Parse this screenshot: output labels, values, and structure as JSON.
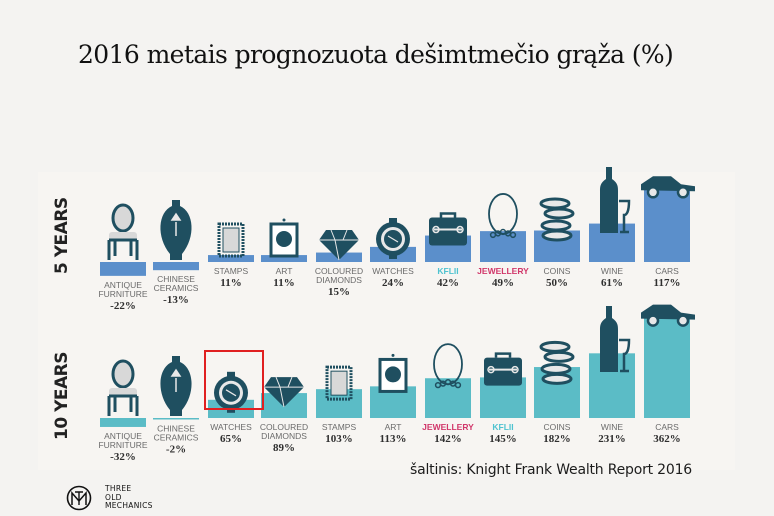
{
  "title": "2016 metais prognozuota dešimtmečio grąža (%)",
  "source": "šaltinis: Knight Frank Wealth Report 2016",
  "logo": {
    "lines": [
      "THREE",
      "OLD",
      "MECHANICS"
    ]
  },
  "colors": {
    "five_year": "#5b8fcb",
    "ten_year": "#5bbcc6",
    "icon": "#1f4f60",
    "kflii": "#4fc3d0",
    "jewellery": "#d1376a",
    "highlight": "#e02020"
  },
  "chart_data": [
    {
      "type": "bar",
      "title": "5 YEARS",
      "unit": "%",
      "categories": [
        "ANTIQUE FURNITURE",
        "CHINESE CERAMICS",
        "STAMPS",
        "ART",
        "COLOURED DIAMONDS",
        "WATCHES",
        "KFLII",
        "JEWELLERY",
        "COINS",
        "WINE",
        "CARS"
      ],
      "label_lines": [
        [
          "ANTIQUE",
          "FURNITURE"
        ],
        [
          "CHINESE",
          "CERAMICS"
        ],
        [
          "STAMPS"
        ],
        [
          "ART"
        ],
        [
          "COLOURED",
          "DIAMONDS"
        ],
        [
          "WATCHES"
        ],
        [
          "KFLII"
        ],
        [
          "JEWELLERY"
        ],
        [
          "COINS"
        ],
        [
          "WINE"
        ],
        [
          "CARS"
        ]
      ],
      "icons": [
        "chair-icon",
        "vase-icon",
        "stamp-icon",
        "portrait-icon",
        "diamond-icon",
        "watch-icon",
        "briefcase-icon",
        "necklace-icon",
        "coins-icon",
        "wine-icon",
        "car-icon"
      ],
      "values": [
        -22,
        -13,
        11,
        11,
        15,
        24,
        42,
        49,
        50,
        61,
        117
      ],
      "value_labels": [
        "-22%",
        "-13%",
        "11%",
        "11%",
        "15%",
        "24%",
        "42%",
        "49%",
        "50%",
        "61%",
        "117%"
      ]
    },
    {
      "type": "bar",
      "title": "10 YEARS",
      "unit": "%",
      "categories": [
        "ANTIQUE FURNITURE",
        "CHINESE CERAMICS",
        "WATCHES",
        "COLOURED DIAMONDS",
        "STAMPS",
        "ART",
        "JEWELLERY",
        "KFLII",
        "COINS",
        "WINE",
        "CARS"
      ],
      "label_lines": [
        [
          "ANTIQUE",
          "FURNITURE"
        ],
        [
          "CHINESE",
          "CERAMICS"
        ],
        [
          "WATCHES"
        ],
        [
          "COLOURED",
          "DIAMONDS"
        ],
        [
          "STAMPS"
        ],
        [
          "ART"
        ],
        [
          "JEWELLERY"
        ],
        [
          "KFLII"
        ],
        [
          "COINS"
        ],
        [
          "WINE"
        ],
        [
          "CARS"
        ]
      ],
      "icons": [
        "chair-icon",
        "vase-icon",
        "watch-icon",
        "diamond-icon",
        "stamp-icon",
        "portrait-icon",
        "necklace-icon",
        "briefcase-icon",
        "coins-icon",
        "wine-icon",
        "car-icon"
      ],
      "values": [
        -32,
        -2,
        65,
        89,
        103,
        113,
        142,
        145,
        182,
        231,
        362
      ],
      "value_labels": [
        "-32%",
        "-2%",
        "65%",
        "89%",
        "103%",
        "113%",
        "142%",
        "145%",
        "182%",
        "231%",
        "362%"
      ],
      "highlighted": "WATCHES"
    }
  ]
}
